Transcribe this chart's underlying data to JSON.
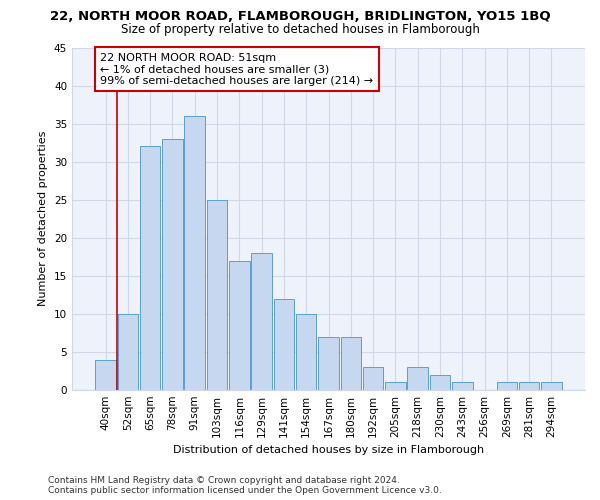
{
  "title_line1": "22, NORTH MOOR ROAD, FLAMBOROUGH, BRIDLINGTON, YO15 1BQ",
  "title_line2": "Size of property relative to detached houses in Flamborough",
  "xlabel": "Distribution of detached houses by size in Flamborough",
  "ylabel": "Number of detached properties",
  "footnote_line1": "Contains HM Land Registry data © Crown copyright and database right 2024.",
  "footnote_line2": "Contains public sector information licensed under the Open Government Licence v3.0.",
  "categories": [
    "40sqm",
    "52sqm",
    "65sqm",
    "78sqm",
    "91sqm",
    "103sqm",
    "116sqm",
    "129sqm",
    "141sqm",
    "154sqm",
    "167sqm",
    "180sqm",
    "192sqm",
    "205sqm",
    "218sqm",
    "230sqm",
    "243sqm",
    "256sqm",
    "269sqm",
    "281sqm",
    "294sqm"
  ],
  "values": [
    4,
    10,
    32,
    33,
    36,
    25,
    17,
    18,
    12,
    10,
    7,
    7,
    3,
    1,
    3,
    2,
    1,
    0,
    1,
    1,
    1
  ],
  "bar_color": "#c5d8f0",
  "bar_edge_color": "#5a9fd4",
  "annotation_box_text": "22 NORTH MOOR ROAD: 51sqm\n← 1% of detached houses are smaller (3)\n99% of semi-detached houses are larger (214) →",
  "annotation_box_color": "#ffffff",
  "annotation_box_edge_color": "#cc0000",
  "ylim": [
    0,
    45
  ],
  "yticks": [
    0,
    5,
    10,
    15,
    20,
    25,
    30,
    35,
    40,
    45
  ],
  "grid_color": "#d0d8e8",
  "bg_color": "#eef2fa",
  "title_fontsize": 9.5,
  "subtitle_fontsize": 8.5,
  "axis_label_fontsize": 8,
  "tick_fontsize": 7.5,
  "annot_fontsize": 8,
  "footnote_fontsize": 6.5
}
